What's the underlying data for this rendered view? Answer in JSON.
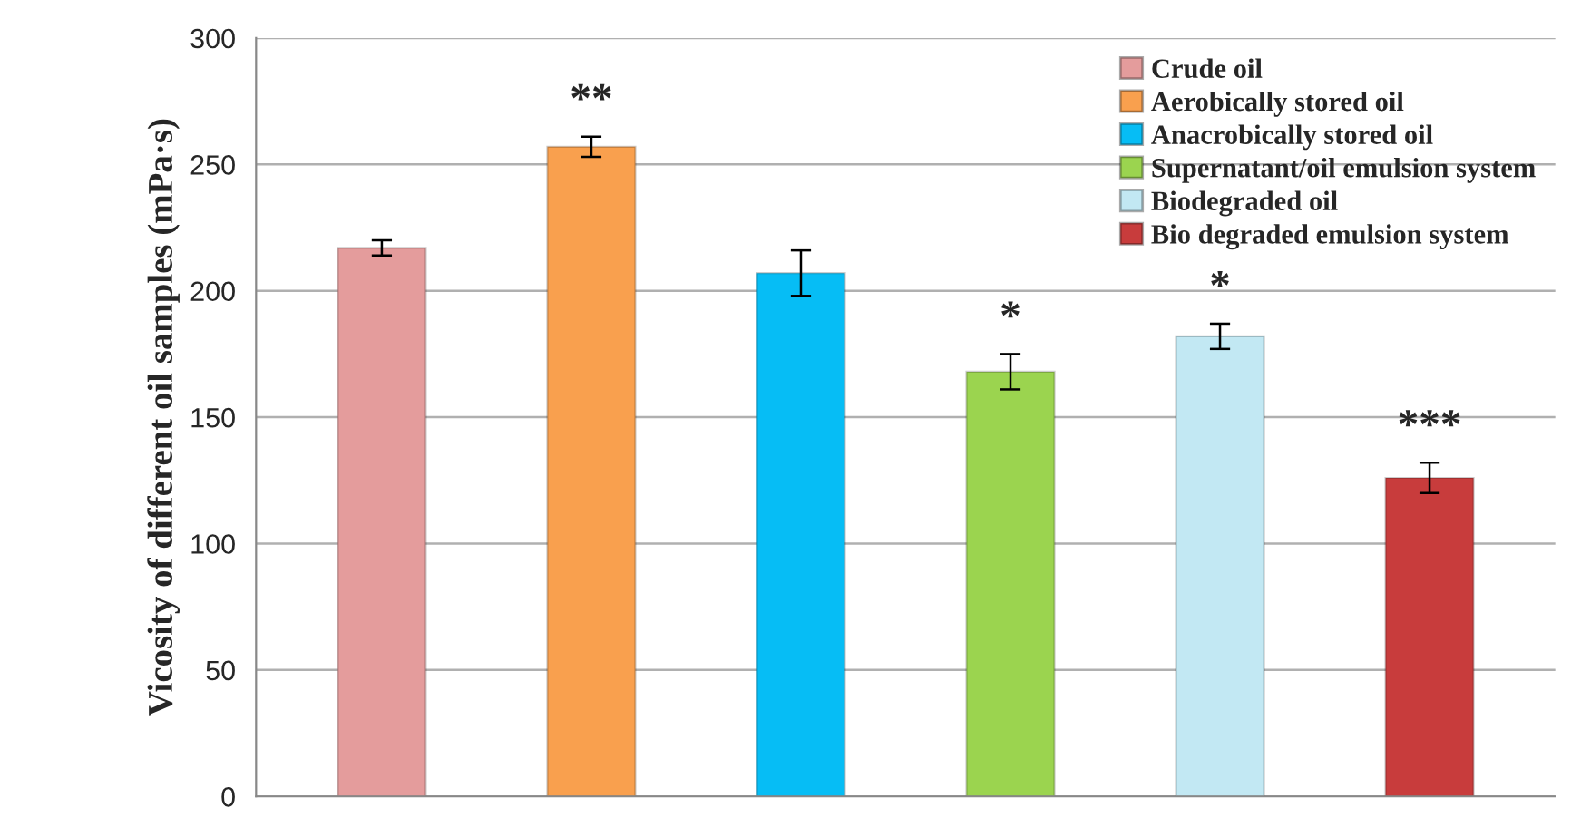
{
  "chart_data": {
    "type": "bar",
    "ylabel": "Vicosity of different oil samples (mPa·s)",
    "categories": [
      null,
      null,
      null,
      null,
      null,
      null
    ],
    "series": [
      {
        "name": "Crude oil",
        "color": "#e49c9c",
        "values": [
          217,
          null,
          null,
          null,
          null,
          null
        ],
        "errors": [
          3,
          null,
          null,
          null,
          null,
          null
        ],
        "value_labels": [
          null,
          null,
          null,
          null,
          null,
          null
        ]
      },
      {
        "name": "Aerobically stored oil",
        "color": "#f9a04e",
        "values": [
          null,
          257,
          null,
          null,
          null,
          null
        ],
        "errors": [
          null,
          4,
          null,
          null,
          null,
          null
        ],
        "value_labels": [
          null,
          "**",
          null,
          null,
          null,
          null
        ]
      },
      {
        "name": "Anacrobically stored oil",
        "color": "#06bdf5",
        "values": [
          null,
          null,
          207,
          null,
          null,
          null
        ],
        "errors": [
          null,
          null,
          9,
          null,
          null,
          null
        ],
        "value_labels": [
          null,
          null,
          null,
          null,
          null,
          null
        ]
      },
      {
        "name": "Supernatant/oil emulsion system",
        "color": "#9bd44f",
        "values": [
          null,
          null,
          null,
          168,
          null,
          null
        ],
        "errors": [
          null,
          null,
          null,
          7,
          null,
          null
        ],
        "value_labels": [
          null,
          null,
          null,
          "*",
          null,
          null
        ]
      },
      {
        "name": "Biodegraded oil",
        "color": "#c2e8f3",
        "values": [
          null,
          null,
          null,
          null,
          182,
          null
        ],
        "errors": [
          null,
          null,
          null,
          null,
          5,
          null
        ],
        "value_labels": [
          null,
          null,
          null,
          null,
          "*",
          null
        ]
      },
      {
        "name": "Bio degraded emulsion system",
        "color": "#c83c3c",
        "values": [
          null,
          null,
          null,
          null,
          null,
          126
        ],
        "errors": [
          null,
          null,
          null,
          null,
          null,
          6
        ],
        "value_labels": [
          null,
          null,
          null,
          null,
          null,
          "***"
        ]
      }
    ],
    "ylim": [
      0,
      300
    ],
    "yticks": [
      0,
      50,
      100,
      150,
      200,
      250,
      300
    ],
    "grid": "y",
    "legend": "top right",
    "tick_labels": "y"
  }
}
